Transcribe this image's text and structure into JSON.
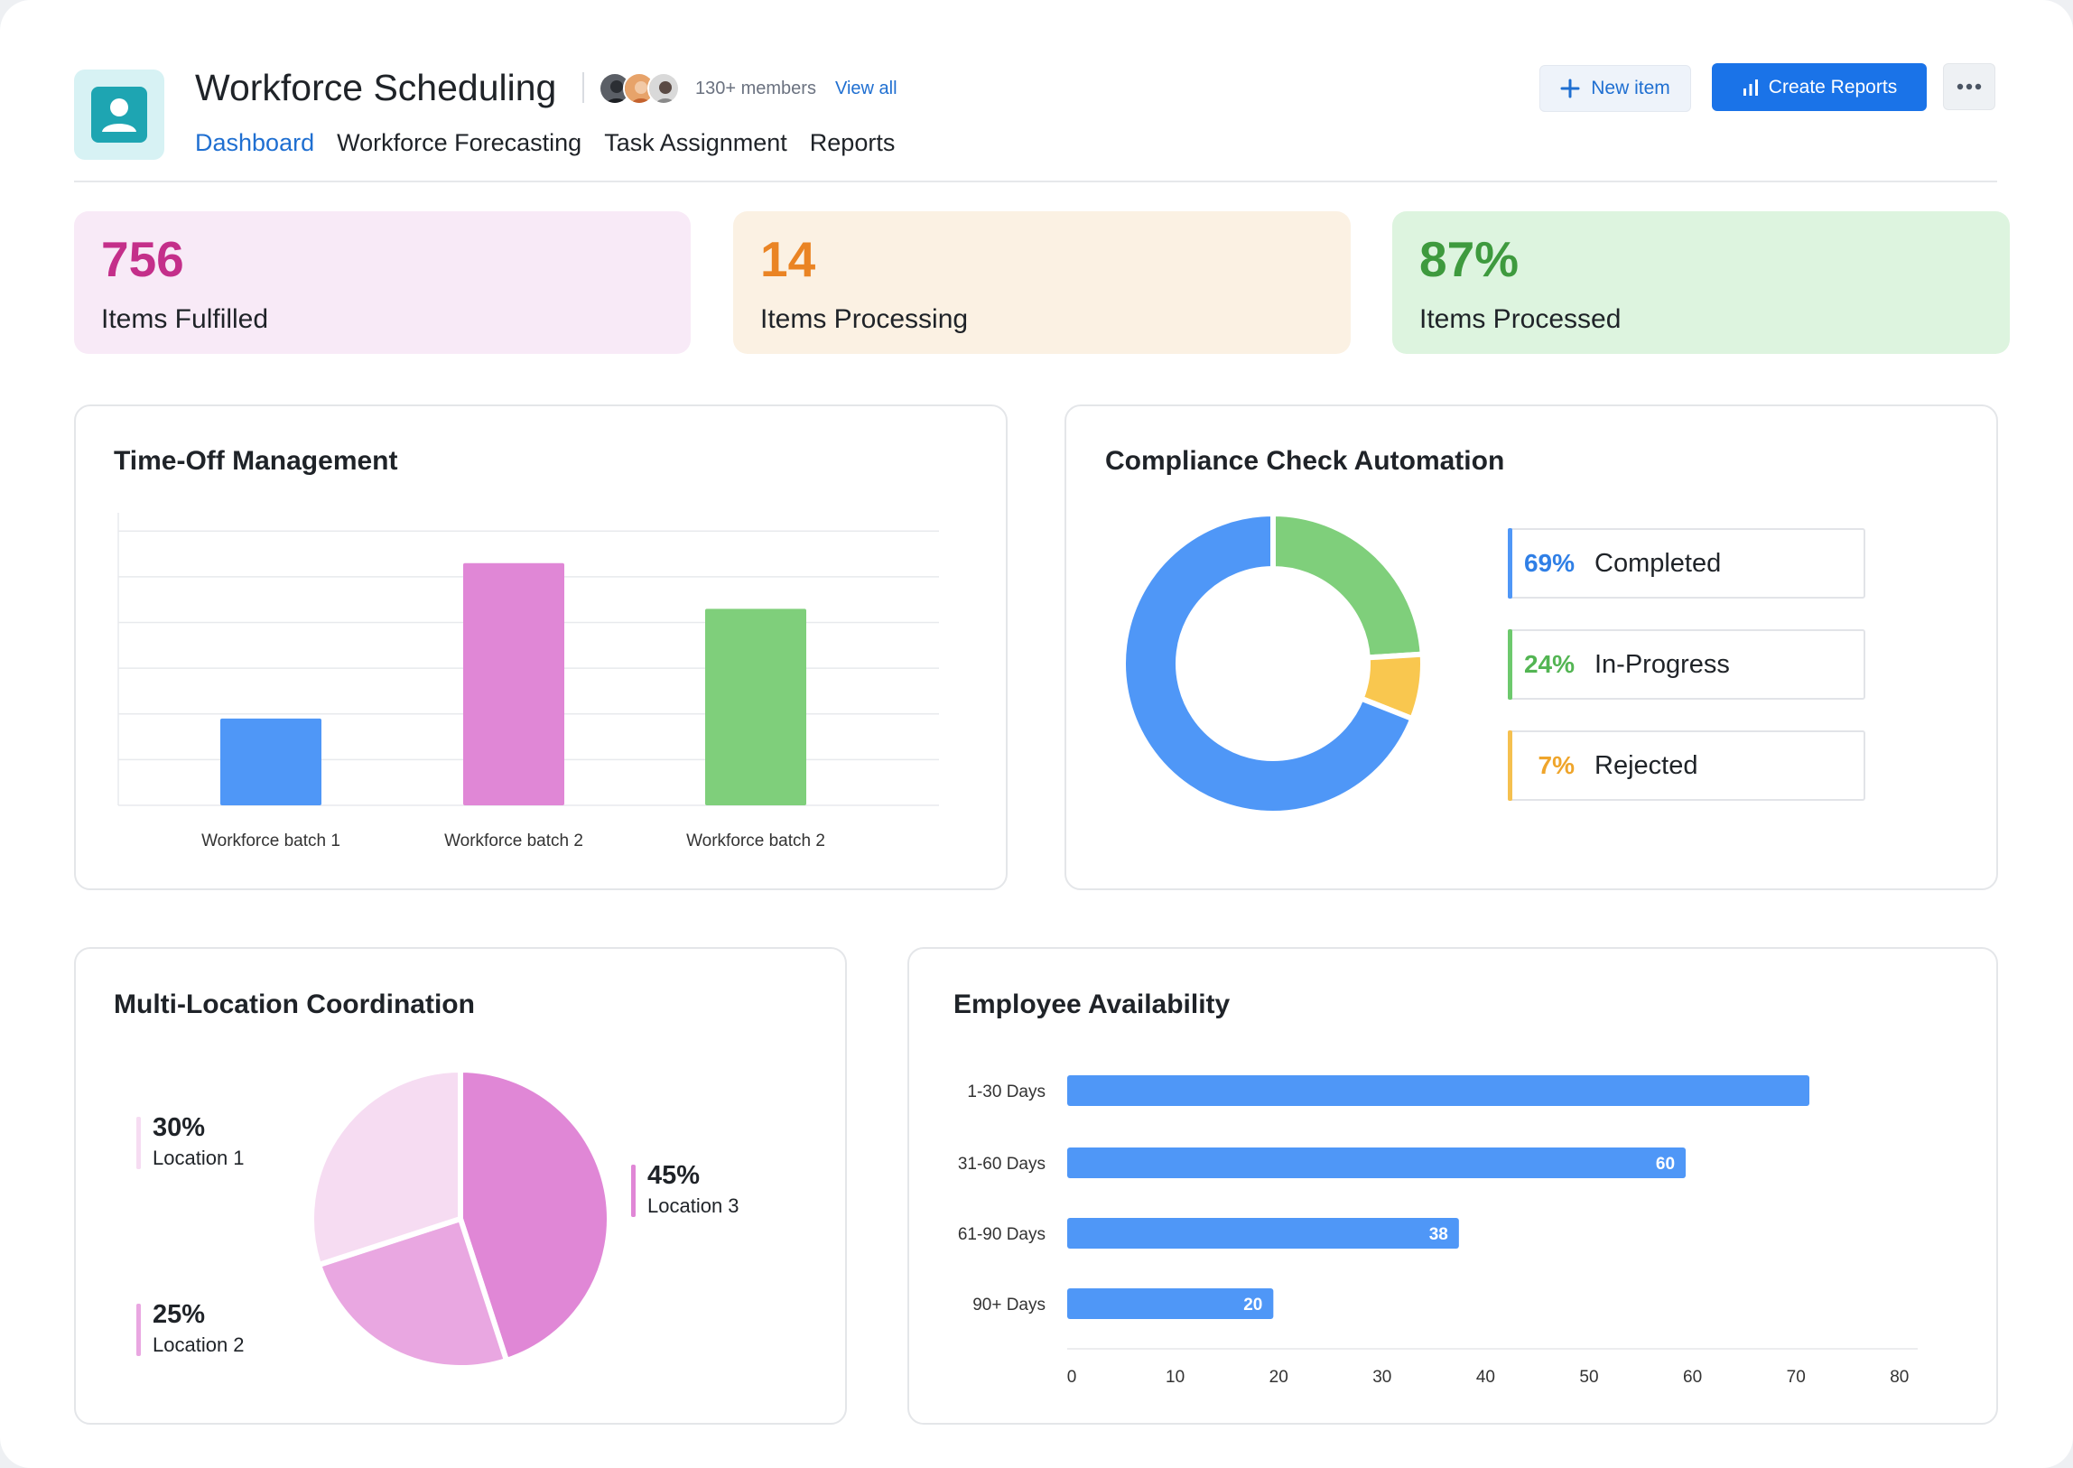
{
  "header": {
    "title": "Workforce Scheduling",
    "members": "130+ members",
    "view_all": "View all",
    "new_item": "New item",
    "create_reports": "Create Reports"
  },
  "nav": [
    {
      "label": "Dashboard",
      "active": true
    },
    {
      "label": "Workforce Forecasting",
      "active": false
    },
    {
      "label": "Task Assignment",
      "active": false
    },
    {
      "label": "Reports",
      "active": false
    }
  ],
  "stats": [
    {
      "value": "756",
      "label": "Items Fulfilled",
      "color": "#c42f8a",
      "bg": "#f8eaf7"
    },
    {
      "value": "14",
      "label": "Items Processing",
      "color": "#ea8424",
      "bg": "#fbf1e3"
    },
    {
      "value": "87%",
      "label": "Items Processed",
      "color": "#3e9a3e",
      "bg": "#ddf4df"
    }
  ],
  "time_off": {
    "title": "Time-Off Management"
  },
  "compliance": {
    "title": "Compliance Check Automation",
    "items": [
      {
        "pct": "69%",
        "label": "Completed",
        "color": "#4f97f7"
      },
      {
        "pct": "24%",
        "label": "In-Progress",
        "color": "#6dc96d"
      },
      {
        "pct": "7%",
        "label": "Rejected",
        "color": "#f5c04f"
      }
    ]
  },
  "multi_location": {
    "title": "Multi-Location Coordination",
    "items": [
      {
        "pct": "30%",
        "label": "Location 1"
      },
      {
        "pct": "25%",
        "label": "Location 2"
      },
      {
        "pct": "45%",
        "label": "Location 3"
      }
    ]
  },
  "availability": {
    "title": "Employee Availability"
  },
  "chart_data": [
    {
      "type": "bar",
      "title": "Time-Off Management",
      "categories": [
        "Workforce batch 1",
        "Workforce batch 2",
        "Workforce batch 2"
      ],
      "values": [
        19,
        53,
        43
      ],
      "colors": [
        "#4f97f7",
        "#e087d6",
        "#7fcf7b"
      ],
      "ylim": [
        0,
        64
      ],
      "grid": true
    },
    {
      "type": "pie",
      "title": "Compliance Check Automation",
      "donut": true,
      "labels": [
        "Completed",
        "In-Progress",
        "Rejected"
      ],
      "values": [
        69,
        24,
        7
      ],
      "colors": [
        "#4f97f7",
        "#7fcf7b",
        "#f9c74f"
      ]
    },
    {
      "type": "pie",
      "title": "Multi-Location Coordination",
      "labels": [
        "Location 1",
        "Location 2",
        "Location 3"
      ],
      "values": [
        30,
        25,
        45
      ],
      "colors": [
        "#f6dcf2",
        "#e9a7e1",
        "#e087d6"
      ]
    },
    {
      "type": "bar",
      "orientation": "horizontal",
      "title": "Employee Availability",
      "categories": [
        "1-30 Days",
        "31-60 Days",
        "61-90 Days",
        "90+ Days"
      ],
      "values": [
        72,
        60,
        38,
        20
      ],
      "data_labels": [
        "",
        "60",
        "38",
        "20"
      ],
      "xticks": [
        "0",
        "10",
        "20",
        "30",
        "40",
        "50",
        "60",
        "70",
        "80"
      ],
      "xlim": [
        0,
        80
      ],
      "color": "#4f97f7"
    }
  ]
}
